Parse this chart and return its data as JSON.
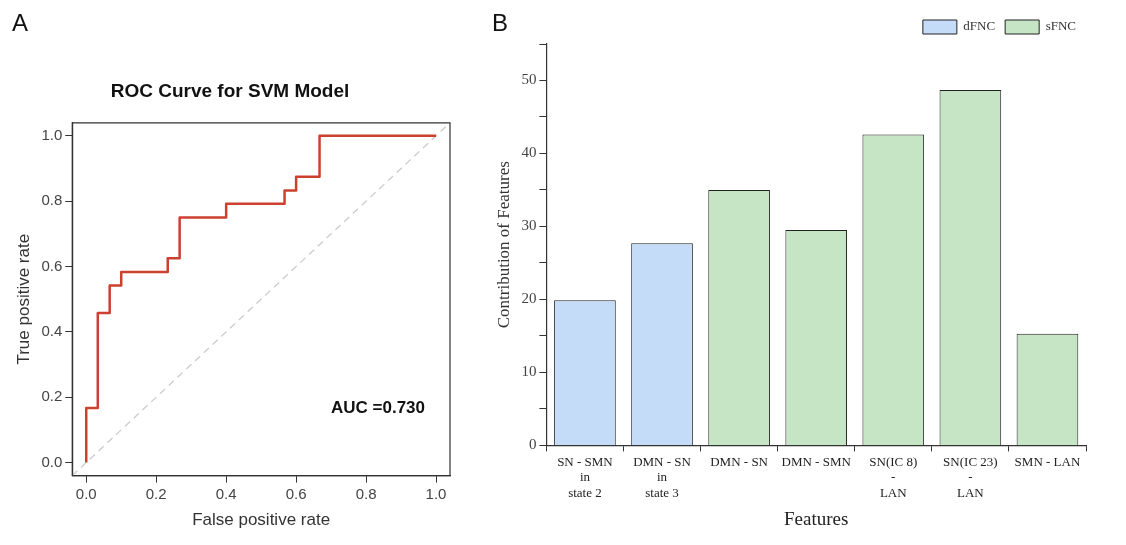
{
  "chart_data": [
    {
      "type": "step",
      "title": "ROC Curve for SVM Model",
      "xlabel": "False positive rate",
      "ylabel": "True positive rate",
      "annotations": [
        "A",
        "AUC =0.730"
      ],
      "series": [
        {
          "color": "#cc4030",
          "x": [
            0,
            0,
            0.033,
            0.067,
            0.1,
            0.233,
            0.267,
            0.4,
            0.567,
            0.6,
            0.667,
            1
          ],
          "values": [
            0,
            0.167,
            0.458,
            0.542,
            0.583,
            0.625,
            0.75,
            0.792,
            0.833,
            0.875,
            1,
            1
          ]
        },
        {
          "type": "line",
          "line_style": "dashed",
          "color": "#cccccc",
          "x": [
            -0.04,
            1.04
          ],
          "values": [
            -0.04,
            1.04
          ]
        }
      ],
      "xlim": [
        -0.04,
        1.04
      ],
      "ylim": [
        -0.04,
        1.04
      ],
      "xticks": [
        {
          "value": 0,
          "label": "0.0"
        },
        {
          "value": 0.2,
          "label": "0.2"
        },
        {
          "value": 0.4,
          "label": "0.4"
        },
        {
          "value": 0.6,
          "label": "0.6"
        },
        {
          "value": 0.8,
          "label": "0.8"
        },
        {
          "value": 1,
          "label": "1.0"
        }
      ],
      "yticks": [
        {
          "value": 0,
          "label": "0.0"
        },
        {
          "value": 0.2,
          "label": "0.2"
        },
        {
          "value": 0.4,
          "label": "0.4"
        },
        {
          "value": 0.6,
          "label": "0.6"
        },
        {
          "value": 0.8,
          "label": "0.8"
        },
        {
          "value": 1,
          "label": "1.0"
        }
      ],
      "grid": false,
      "legend": false
    },
    {
      "type": "bar",
      "xlabel": "Features",
      "ylabel": "Contribution of Features",
      "annotations": [
        "B"
      ],
      "categories": [
        "SN - SMN\nin\nstate 2",
        "DMN - SN\nin\nstate 3",
        "DMN - SN",
        "DMN - SMN",
        "SN(IC 8)\n-\nLAN",
        "SN(IC 23)\n-\nLAN",
        "SMN - LAN"
      ],
      "series": [
        {
          "name": "dFNC",
          "color": "#c5dcf8",
          "values": [
            19.9,
            27.7,
            null,
            null,
            null,
            null,
            null
          ]
        },
        {
          "name": "sFNC",
          "color": "#c6e5c4",
          "values": [
            null,
            null,
            35.0,
            29.5,
            42.6,
            48.7,
            15.3
          ]
        }
      ],
      "ylim": [
        0,
        55
      ],
      "yticks": [
        0,
        {
          "value": 5,
          "label": null
        },
        10,
        {
          "value": 15,
          "label": null
        },
        20,
        {
          "value": 25,
          "label": null
        },
        30,
        {
          "value": 35,
          "label": null
        },
        40,
        {
          "value": 45,
          "label": null
        },
        50,
        {
          "value": 55,
          "label": null
        }
      ],
      "grid": false,
      "legend": "top right"
    }
  ]
}
